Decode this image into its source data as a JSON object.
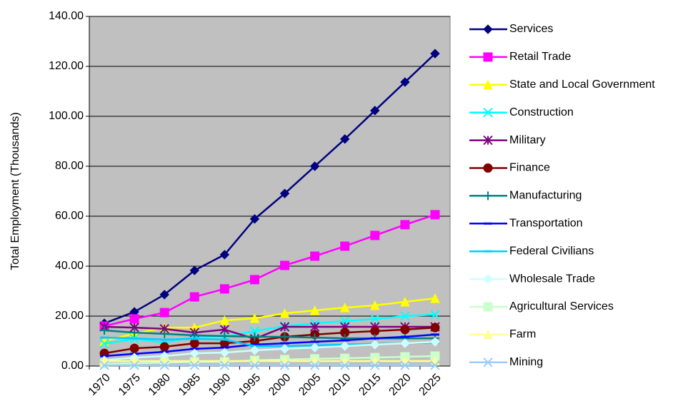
{
  "chart_data": {
    "type": "line",
    "ylabel": "Total Employment (Thousands)",
    "categories": [
      "1970",
      "1975",
      "1980",
      "1985",
      "1990",
      "1995",
      "2000",
      "2005",
      "2010",
      "2015",
      "2020",
      "2025"
    ],
    "ylim": [
      0,
      140
    ],
    "yticks": [
      {
        "value": 0,
        "label": "0.00"
      },
      {
        "value": 20,
        "label": "20.00"
      },
      {
        "value": 40,
        "label": "40.00"
      },
      {
        "value": 60,
        "label": "60.00"
      },
      {
        "value": 80,
        "label": "80.00"
      },
      {
        "value": 100,
        "label": "100.00"
      },
      {
        "value": 120,
        "label": "120.00"
      },
      {
        "value": 140,
        "label": "140.00"
      }
    ],
    "grid": true,
    "legend": "right",
    "series": [
      {
        "name": "Services",
        "color": "#000080",
        "marker": "diamond",
        "values": [
          17.1,
          21.7,
          28.6,
          38.3,
          44.6,
          58.9,
          69.1,
          80.0,
          90.9,
          102.3,
          113.7,
          125.1
        ]
      },
      {
        "name": "Retail Trade",
        "color": "#FF00FF",
        "marker": "square",
        "values": [
          16.0,
          18.9,
          21.4,
          27.7,
          30.9,
          34.6,
          40.3,
          44.0,
          48.0,
          52.3,
          56.6,
          60.6
        ]
      },
      {
        "name": "State and Local Government",
        "color": "#FFFF00",
        "marker": "triangle",
        "values": [
          10.0,
          13.0,
          15.4,
          15.4,
          18.3,
          19.1,
          21.1,
          22.3,
          23.4,
          24.3,
          25.7,
          27.1
        ]
      },
      {
        "name": "Construction",
        "color": "#00FFFF",
        "marker": "x",
        "values": [
          8.9,
          10.9,
          9.4,
          11.7,
          11.7,
          14.0,
          16.0,
          17.1,
          18.0,
          18.9,
          20.0,
          20.6
        ]
      },
      {
        "name": "Military",
        "color": "#800080",
        "marker": "star",
        "values": [
          15.7,
          15.4,
          14.9,
          13.4,
          14.6,
          10.9,
          15.7,
          15.7,
          15.7,
          15.7,
          15.7,
          15.7
        ]
      },
      {
        "name": "Finance",
        "color": "#800000",
        "marker": "circle",
        "values": [
          5.1,
          7.1,
          7.7,
          9.1,
          9.1,
          10.0,
          11.7,
          12.6,
          13.4,
          14.0,
          14.6,
          15.4
        ]
      },
      {
        "name": "Manufacturing",
        "color": "#008080",
        "marker": "plus",
        "values": [
          14.3,
          13.4,
          12.9,
          12.3,
          12.0,
          11.7,
          11.7,
          11.4,
          11.1,
          11.1,
          11.1,
          11.1
        ]
      },
      {
        "name": "Transportation",
        "color": "#0000FF",
        "marker": "dash",
        "values": [
          4.0,
          4.9,
          5.7,
          6.9,
          7.4,
          8.6,
          9.1,
          9.7,
          10.3,
          11.1,
          11.7,
          12.6
        ]
      },
      {
        "name": "Federal Civilians",
        "color": "#00CCFF",
        "marker": "dash",
        "values": [
          11.4,
          11.1,
          10.6,
          10.9,
          10.6,
          8.0,
          8.0,
          8.3,
          8.6,
          8.9,
          9.1,
          9.4
        ]
      },
      {
        "name": "Wholesale Trade",
        "color": "#CCFFFF",
        "marker": "diamond",
        "values": [
          2.3,
          3.4,
          4.0,
          5.1,
          5.4,
          6.3,
          6.9,
          7.4,
          8.0,
          8.6,
          9.1,
          9.7
        ]
      },
      {
        "name": "Agricultural Services",
        "color": "#CCFFCC",
        "marker": "square",
        "values": [
          0.9,
          1.1,
          1.4,
          1.7,
          1.7,
          2.3,
          2.6,
          2.9,
          3.1,
          3.4,
          3.7,
          4.0
        ]
      },
      {
        "name": "Farm",
        "color": "#FFFF99",
        "marker": "triangle",
        "values": [
          2.0,
          2.0,
          2.0,
          2.0,
          2.0,
          2.0,
          2.0,
          2.0,
          2.0,
          2.0,
          2.0,
          2.0
        ]
      },
      {
        "name": "Mining",
        "color": "#99CCFF",
        "marker": "x",
        "values": [
          0.3,
          0.3,
          0.3,
          0.3,
          0.3,
          0.3,
          0.3,
          0.3,
          0.3,
          0.3,
          0.3,
          0.3
        ]
      }
    ]
  }
}
